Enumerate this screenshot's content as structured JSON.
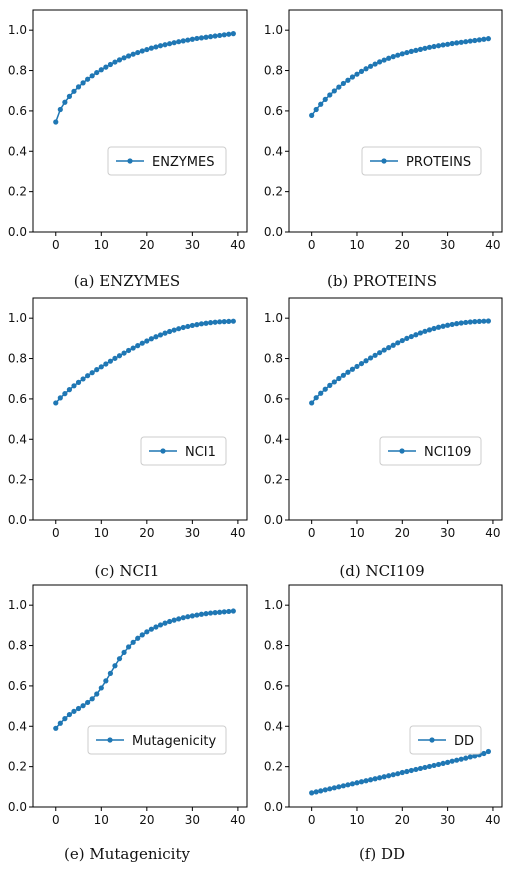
{
  "chart_data": [
    {
      "type": "line",
      "caption": "(a)  ENZYMES",
      "series": [
        {
          "name": "ENZYMES",
          "x": [
            0,
            1,
            2,
            3,
            4,
            5,
            6,
            7,
            8,
            9,
            10,
            11,
            12,
            13,
            14,
            15,
            16,
            17,
            18,
            19,
            20,
            21,
            22,
            23,
            24,
            25,
            26,
            27,
            28,
            29,
            30,
            31,
            32,
            33,
            34,
            35,
            36,
            37,
            38,
            39
          ],
          "y": [
            0.545,
            0.607,
            0.643,
            0.672,
            0.697,
            0.719,
            0.739,
            0.757,
            0.774,
            0.79,
            0.804,
            0.817,
            0.83,
            0.842,
            0.853,
            0.863,
            0.872,
            0.881,
            0.889,
            0.897,
            0.904,
            0.911,
            0.917,
            0.923,
            0.928,
            0.933,
            0.938,
            0.943,
            0.947,
            0.951,
            0.955,
            0.959,
            0.962,
            0.965,
            0.968,
            0.971,
            0.974,
            0.977,
            0.98,
            0.983
          ]
        }
      ],
      "xlim": [
        -5,
        42
      ],
      "ylim": [
        0,
        1.1
      ],
      "xticks": [
        0,
        10,
        20,
        30,
        40
      ],
      "yticks": [
        0.0,
        0.2,
        0.4,
        0.6,
        0.8,
        1.0
      ],
      "legend": "center-right",
      "color": "#1f77b4"
    },
    {
      "type": "line",
      "caption": "(b)  PROTEINS",
      "series": [
        {
          "name": "PROTEINS",
          "x": [
            0,
            1,
            2,
            3,
            4,
            5,
            6,
            7,
            8,
            9,
            10,
            11,
            12,
            13,
            14,
            15,
            16,
            17,
            18,
            19,
            20,
            21,
            22,
            23,
            24,
            25,
            26,
            27,
            28,
            29,
            30,
            31,
            32,
            33,
            34,
            35,
            36,
            37,
            38,
            39
          ],
          "y": [
            0.578,
            0.607,
            0.633,
            0.657,
            0.679,
            0.699,
            0.718,
            0.736,
            0.752,
            0.768,
            0.782,
            0.796,
            0.809,
            0.821,
            0.832,
            0.843,
            0.852,
            0.861,
            0.869,
            0.876,
            0.883,
            0.889,
            0.895,
            0.9,
            0.905,
            0.91,
            0.915,
            0.919,
            0.923,
            0.927,
            0.93,
            0.934,
            0.937,
            0.94,
            0.943,
            0.946,
            0.949,
            0.952,
            0.955,
            0.958
          ]
        }
      ],
      "xlim": [
        -5,
        42
      ],
      "ylim": [
        0,
        1.1
      ],
      "xticks": [
        0,
        10,
        20,
        30,
        40
      ],
      "yticks": [
        0.0,
        0.2,
        0.4,
        0.6,
        0.8,
        1.0
      ],
      "legend": "center-right",
      "color": "#1f77b4"
    },
    {
      "type": "line",
      "caption": "(c)  NCI1",
      "series": [
        {
          "name": "NCI1",
          "x": [
            0,
            1,
            2,
            3,
            4,
            5,
            6,
            7,
            8,
            9,
            10,
            11,
            12,
            13,
            14,
            15,
            16,
            17,
            18,
            19,
            20,
            21,
            22,
            23,
            24,
            25,
            26,
            27,
            28,
            29,
            30,
            31,
            32,
            33,
            34,
            35,
            36,
            37,
            38,
            39
          ],
          "y": [
            0.58,
            0.605,
            0.626,
            0.646,
            0.665,
            0.682,
            0.699,
            0.715,
            0.73,
            0.745,
            0.759,
            0.773,
            0.787,
            0.801,
            0.814,
            0.827,
            0.84,
            0.852,
            0.864,
            0.876,
            0.887,
            0.898,
            0.908,
            0.917,
            0.926,
            0.934,
            0.941,
            0.948,
            0.954,
            0.959,
            0.964,
            0.968,
            0.972,
            0.975,
            0.978,
            0.98,
            0.982,
            0.983,
            0.984,
            0.985
          ]
        }
      ],
      "xlim": [
        -5,
        42
      ],
      "ylim": [
        0,
        1.1
      ],
      "xticks": [
        0,
        10,
        20,
        30,
        40
      ],
      "yticks": [
        0.0,
        0.2,
        0.4,
        0.6,
        0.8,
        1.0
      ],
      "legend": "center-right",
      "color": "#1f77b4"
    },
    {
      "type": "line",
      "caption": "(d)  NCI109",
      "series": [
        {
          "name": "NCI109",
          "x": [
            0,
            1,
            2,
            3,
            4,
            5,
            6,
            7,
            8,
            9,
            10,
            11,
            12,
            13,
            14,
            15,
            16,
            17,
            18,
            19,
            20,
            21,
            22,
            23,
            24,
            25,
            26,
            27,
            28,
            29,
            30,
            31,
            32,
            33,
            34,
            35,
            36,
            37,
            38,
            39
          ],
          "y": [
            0.58,
            0.606,
            0.628,
            0.648,
            0.667,
            0.684,
            0.701,
            0.717,
            0.732,
            0.747,
            0.761,
            0.775,
            0.789,
            0.803,
            0.816,
            0.829,
            0.842,
            0.854,
            0.866,
            0.878,
            0.889,
            0.9,
            0.909,
            0.918,
            0.927,
            0.935,
            0.942,
            0.949,
            0.955,
            0.96,
            0.965,
            0.969,
            0.973,
            0.976,
            0.979,
            0.981,
            0.983,
            0.984,
            0.985,
            0.986
          ]
        }
      ],
      "xlim": [
        -5,
        42
      ],
      "ylim": [
        0,
        1.1
      ],
      "xticks": [
        0,
        10,
        20,
        30,
        40
      ],
      "yticks": [
        0.0,
        0.2,
        0.4,
        0.6,
        0.8,
        1.0
      ],
      "legend": "center-right",
      "color": "#1f77b4"
    },
    {
      "type": "line",
      "caption": "(e)  Mutagenicity",
      "series": [
        {
          "name": "Mutagenicity",
          "x": [
            0,
            1,
            2,
            3,
            4,
            5,
            6,
            7,
            8,
            9,
            10,
            11,
            12,
            13,
            14,
            15,
            16,
            17,
            18,
            19,
            20,
            21,
            22,
            23,
            24,
            25,
            26,
            27,
            28,
            29,
            30,
            31,
            32,
            33,
            34,
            35,
            36,
            37,
            38,
            39
          ],
          "y": [
            0.39,
            0.415,
            0.438,
            0.458,
            0.474,
            0.488,
            0.502,
            0.518,
            0.536,
            0.56,
            0.59,
            0.625,
            0.662,
            0.7,
            0.735,
            0.766,
            0.793,
            0.816,
            0.836,
            0.853,
            0.868,
            0.881,
            0.892,
            0.902,
            0.911,
            0.919,
            0.926,
            0.932,
            0.938,
            0.943,
            0.947,
            0.951,
            0.955,
            0.958,
            0.961,
            0.963,
            0.965,
            0.967,
            0.969,
            0.971
          ]
        }
      ],
      "xlim": [
        -5,
        42
      ],
      "ylim": [
        0,
        1.1
      ],
      "xticks": [
        0,
        10,
        20,
        30,
        40
      ],
      "yticks": [
        0.0,
        0.2,
        0.4,
        0.6,
        0.8,
        1.0
      ],
      "legend": "lower-right",
      "color": "#1f77b4"
    },
    {
      "type": "line",
      "caption": "(f)  DD",
      "series": [
        {
          "name": "DD",
          "x": [
            0,
            1,
            2,
            3,
            4,
            5,
            6,
            7,
            8,
            9,
            10,
            11,
            12,
            13,
            14,
            15,
            16,
            17,
            18,
            19,
            20,
            21,
            22,
            23,
            24,
            25,
            26,
            27,
            28,
            29,
            30,
            31,
            32,
            33,
            34,
            35,
            36,
            37,
            38,
            39
          ],
          "y": [
            0.07,
            0.075,
            0.08,
            0.085,
            0.09,
            0.095,
            0.1,
            0.105,
            0.11,
            0.115,
            0.12,
            0.125,
            0.13,
            0.135,
            0.14,
            0.145,
            0.15,
            0.155,
            0.16,
            0.165,
            0.171,
            0.176,
            0.181,
            0.186,
            0.191,
            0.196,
            0.201,
            0.206,
            0.211,
            0.216,
            0.221,
            0.227,
            0.232,
            0.237,
            0.242,
            0.248,
            0.253,
            0.259,
            0.265,
            0.275
          ]
        }
      ],
      "xlim": [
        -5,
        42
      ],
      "ylim": [
        0,
        1.1
      ],
      "xticks": [
        0,
        10,
        20,
        30,
        40
      ],
      "yticks": [
        0.0,
        0.2,
        0.4,
        0.6,
        0.8,
        1.0
      ],
      "legend": "lower-right",
      "color": "#1f77b4"
    }
  ]
}
